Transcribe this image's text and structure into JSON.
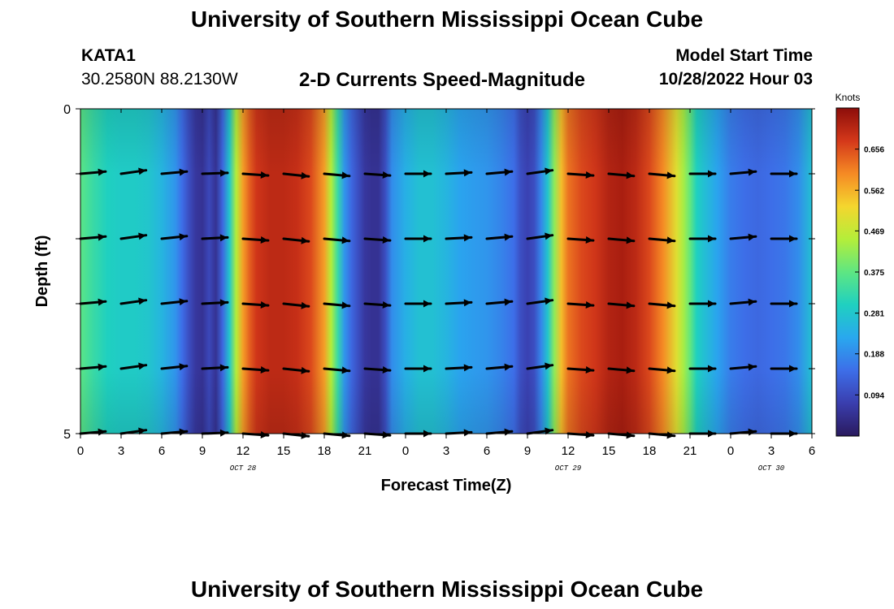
{
  "header": {
    "title": "University of Southern Mississippi Ocean Cube",
    "station": "KATA1",
    "coords": "30.2580N  88.2130W",
    "subtitle": "2-D Currents Speed-Magnitude",
    "start_label": "Model Start Time",
    "start_value": "10/28/2022 Hour 03"
  },
  "footer": {
    "title": "University of Southern Mississippi Ocean Cube"
  },
  "colors": {
    "background": "#ffffff",
    "arrow": "#000000",
    "colormap": [
      "#2a1a5e",
      "#3a3eae",
      "#3d6ee8",
      "#29a8ee",
      "#1fd0c0",
      "#5ee682",
      "#b4ee3a",
      "#f4d62e",
      "#f58a24",
      "#d4381a",
      "#8c0d0a"
    ]
  },
  "chart_data": {
    "type": "heatmap",
    "title": "2-D Currents Speed-Magnitude",
    "xlabel": "Forecast Time(Z)",
    "ylabel": "Depth (ft)",
    "x_tick_labels": [
      "0",
      "3",
      "6",
      "9",
      "12",
      "15",
      "18",
      "21",
      "0",
      "3",
      "6",
      "9",
      "12",
      "15",
      "18",
      "21",
      "0",
      "3",
      "6"
    ],
    "x_tick_hours": [
      0,
      3,
      6,
      9,
      12,
      15,
      18,
      21,
      24,
      27,
      30,
      33,
      36,
      39,
      42,
      45,
      48,
      51,
      54
    ],
    "date_labels": [
      {
        "text": "OCT 28",
        "hour": 12
      },
      {
        "text": "OCT 29",
        "hour": 36
      },
      {
        "text": "OCT 30",
        "hour": 51
      }
    ],
    "x_range_hours": [
      0,
      54
    ],
    "y_tick_labels": [
      "0",
      "5"
    ],
    "y_range_ft": [
      0,
      5
    ],
    "depth_levels_ft": [
      0,
      1,
      2,
      3,
      4,
      5
    ],
    "colorbar": {
      "label": "Knots",
      "tick_labels": [
        "0.656",
        "0.562",
        "0.469",
        "0.375",
        "0.281",
        "0.188",
        "0.094"
      ],
      "range": [
        0,
        0.75
      ]
    },
    "speed_profile": {
      "hours": [
        0,
        1,
        2,
        3,
        4,
        5,
        6,
        7,
        7.5,
        8,
        8.5,
        9,
        9.5,
        10,
        10.5,
        11,
        11.5,
        12,
        12.5,
        13,
        14,
        15,
        16,
        17,
        18,
        18.5,
        19,
        19.5,
        20,
        20.5,
        21,
        21.5,
        22,
        22.5,
        23,
        24,
        25,
        26,
        27,
        28,
        29,
        30,
        31,
        32,
        32.5,
        33,
        33.5,
        34,
        34.5,
        35,
        35.5,
        36,
        37,
        38,
        39,
        40,
        41,
        42,
        43,
        44,
        44.5,
        45,
        45.5,
        46,
        47,
        48,
        49,
        50,
        51,
        52,
        53,
        54
      ],
      "knots": [
        0.37,
        0.33,
        0.3,
        0.29,
        0.29,
        0.28,
        0.25,
        0.2,
        0.15,
        0.1,
        0.06,
        0.05,
        0.09,
        0.05,
        0.14,
        0.28,
        0.45,
        0.58,
        0.64,
        0.68,
        0.7,
        0.7,
        0.69,
        0.66,
        0.58,
        0.45,
        0.33,
        0.2,
        0.14,
        0.1,
        0.06,
        0.05,
        0.05,
        0.1,
        0.19,
        0.24,
        0.27,
        0.27,
        0.25,
        0.22,
        0.21,
        0.2,
        0.18,
        0.15,
        0.1,
        0.08,
        0.1,
        0.18,
        0.28,
        0.42,
        0.55,
        0.62,
        0.66,
        0.68,
        0.71,
        0.72,
        0.7,
        0.66,
        0.6,
        0.5,
        0.44,
        0.38,
        0.3,
        0.27,
        0.22,
        0.17,
        0.15,
        0.14,
        0.15,
        0.16,
        0.19,
        0.27
      ]
    },
    "vectors": {
      "hours": [
        0,
        3,
        6,
        9,
        12,
        15,
        18,
        21,
        24,
        27,
        30,
        33,
        36,
        39,
        42,
        45,
        48,
        51
      ],
      "depth_angles_deg": [
        [
          5,
          8,
          5,
          2,
          -4,
          -6,
          -5,
          -4,
          0,
          3,
          5,
          8,
          -4,
          -5,
          -5,
          0,
          5,
          0
        ],
        [
          5,
          8,
          6,
          3,
          -4,
          -6,
          -5,
          -4,
          0,
          3,
          5,
          8,
          -4,
          -5,
          -5,
          0,
          5,
          0
        ],
        [
          5,
          8,
          6,
          3,
          -4,
          -6,
          -5,
          -4,
          0,
          3,
          5,
          8,
          -4,
          -5,
          -5,
          0,
          5,
          0
        ],
        [
          5,
          8,
          6,
          3,
          -4,
          -6,
          -5,
          -4,
          0,
          3,
          5,
          8,
          -4,
          -5,
          -5,
          0,
          5,
          0
        ],
        [
          5,
          8,
          5,
          2,
          -4,
          -6,
          -5,
          -4,
          0,
          3,
          5,
          8,
          -4,
          -5,
          -5,
          0,
          5,
          0
        ]
      ]
    }
  }
}
